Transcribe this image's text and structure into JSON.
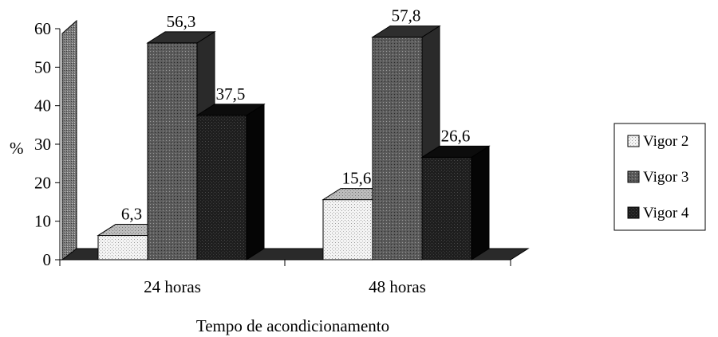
{
  "chart_data": {
    "type": "bar",
    "title": "",
    "ylabel": "%",
    "xlabel": "Tempo de acondicionamento",
    "categories": [
      "24 horas",
      "48 horas"
    ],
    "series": [
      {
        "name": "Vigor 2",
        "values": [
          6.3,
          15.6
        ],
        "value_labels": [
          "6,3",
          "15,6"
        ],
        "color": "#e8e8e8"
      },
      {
        "name": "Vigor 3",
        "values": [
          56.3,
          57.8
        ],
        "value_labels": [
          "56,3",
          "57,8"
        ],
        "color": "#5a5a5a"
      },
      {
        "name": "Vigor 4",
        "values": [
          37.5,
          26.6
        ],
        "value_labels": [
          "37,5",
          "26,6"
        ],
        "color": "#1c1c1c"
      }
    ],
    "ylim": [
      0,
      60
    ],
    "yticks": [
      0,
      10,
      20,
      30,
      40,
      50,
      60
    ],
    "grid": false,
    "legend_position": "right",
    "style": "3d-clustered-column"
  }
}
